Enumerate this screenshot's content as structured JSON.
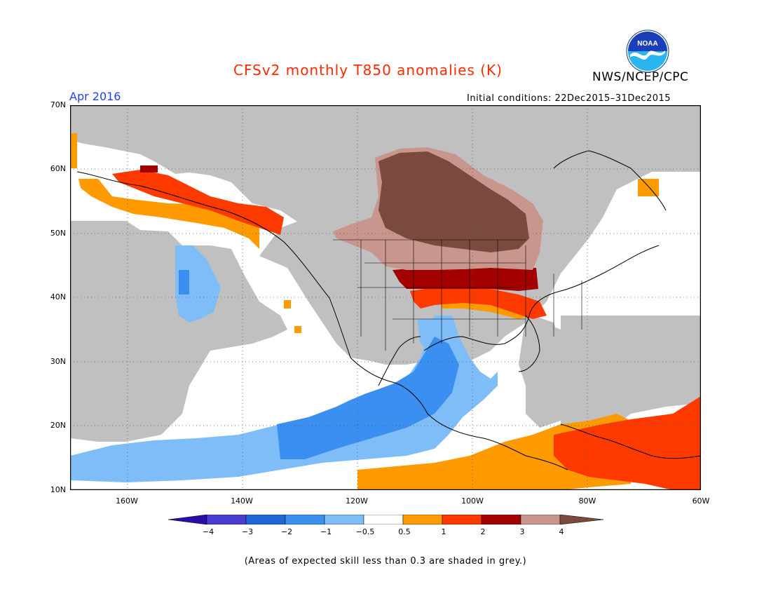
{
  "title": "CFSv2 monthly T850 anomalies (K)",
  "agency": "NWS/NCEP/CPC",
  "logo_text": "NOAA",
  "month": "Apr 2016",
  "initial_conditions": "Initial conditions: 22Dec2015–31Dec2015",
  "footnote": "(Areas of expected skill less than 0.3 are shaded in grey.)",
  "lat_labels": [
    "70N",
    "60N",
    "50N",
    "40N",
    "30N",
    "20N",
    "10N"
  ],
  "lon_labels": [
    "160W",
    "140W",
    "120W",
    "100W",
    "80W",
    "60W"
  ],
  "map": {
    "lon_range": [
      -171,
      -60
    ],
    "lat_range": [
      10,
      70
    ],
    "grid_lons": [
      -160,
      -140,
      -120,
      -100,
      -80
    ],
    "grid_lats": [
      20,
      30,
      40,
      50,
      60
    ]
  },
  "colorbar": {
    "labels": [
      "−4",
      "−3",
      "−2",
      "−1",
      "−0.5",
      "0.5",
      "1",
      "2",
      "3",
      "4"
    ],
    "colors": [
      "#2a0ca8",
      "#4a3cd0",
      "#1f66d6",
      "#3b8ff0",
      "#7fbdf8",
      "#ffffff",
      "#ff9a00",
      "#ff3a00",
      "#a30000",
      "#c8968c",
      "#7a4a3e"
    ],
    "grey_color": "#c0c0c0"
  }
}
